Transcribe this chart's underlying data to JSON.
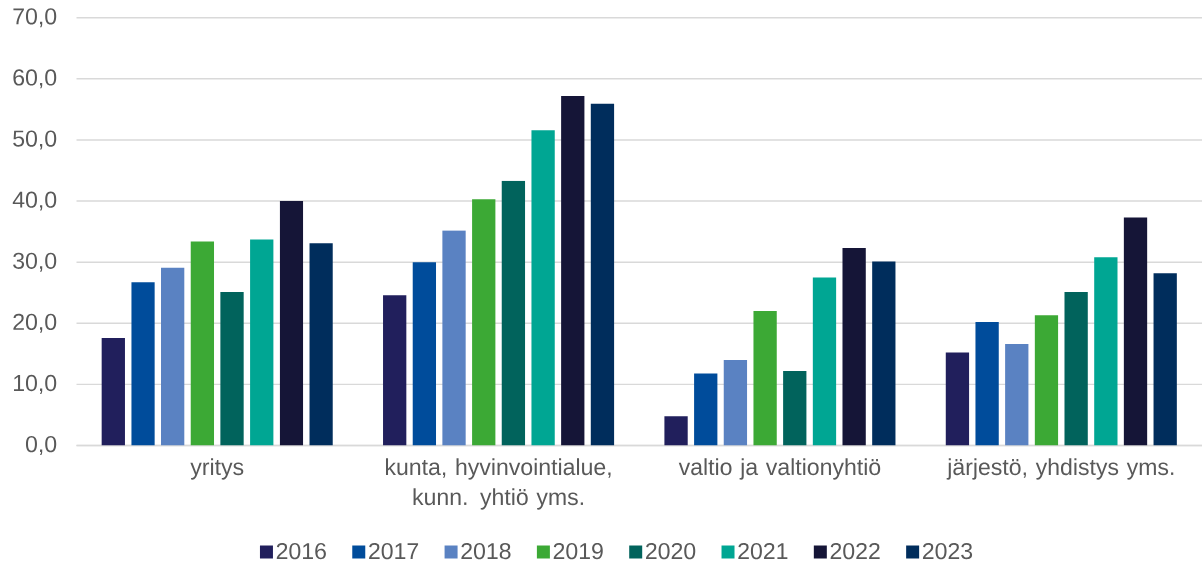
{
  "chart_data": {
    "type": "bar",
    "categories": [
      "yritys",
      "kunta, hyvinvointialue, kunn. yhtiö yms.",
      "valtio ja valtionyhtiö",
      "järjestö, yhdistys yms."
    ],
    "series": [
      {
        "name": "2016",
        "color": "#211f5c",
        "values": [
          17.6,
          24.6,
          4.8,
          15.2
        ]
      },
      {
        "name": "2017",
        "color": "#004c9b",
        "values": [
          26.7,
          30.0,
          11.8,
          20.2
        ]
      },
      {
        "name": "2018",
        "color": "#5a82c2",
        "values": [
          29.1,
          35.2,
          14.0,
          16.6
        ]
      },
      {
        "name": "2019",
        "color": "#3ca935",
        "values": [
          33.4,
          40.3,
          22.0,
          21.3
        ]
      },
      {
        "name": "2020",
        "color": "#01635c",
        "values": [
          25.1,
          43.3,
          12.2,
          25.1
        ]
      },
      {
        "name": "2021",
        "color": "#00a693",
        "values": [
          33.7,
          51.6,
          27.5,
          30.8
        ]
      },
      {
        "name": "2022",
        "color": "#151537",
        "values": [
          40.0,
          57.2,
          32.3,
          37.3
        ]
      },
      {
        "name": "2023",
        "color": "#002d5c",
        "values": [
          33.1,
          55.9,
          30.1,
          28.2
        ]
      }
    ],
    "ylim": [
      0,
      70
    ],
    "yticks": [
      {
        "value": 0,
        "label": "0,0"
      },
      {
        "value": 10,
        "label": "10,0"
      },
      {
        "value": 20,
        "label": "20,0"
      },
      {
        "value": 30,
        "label": "30,0"
      },
      {
        "value": 40,
        "label": "40,0"
      },
      {
        "value": 50,
        "label": "50,0"
      },
      {
        "value": 60,
        "label": "60,0"
      },
      {
        "value": 70,
        "label": "70,0"
      }
    ],
    "grid": "y",
    "legend": "bottom"
  }
}
